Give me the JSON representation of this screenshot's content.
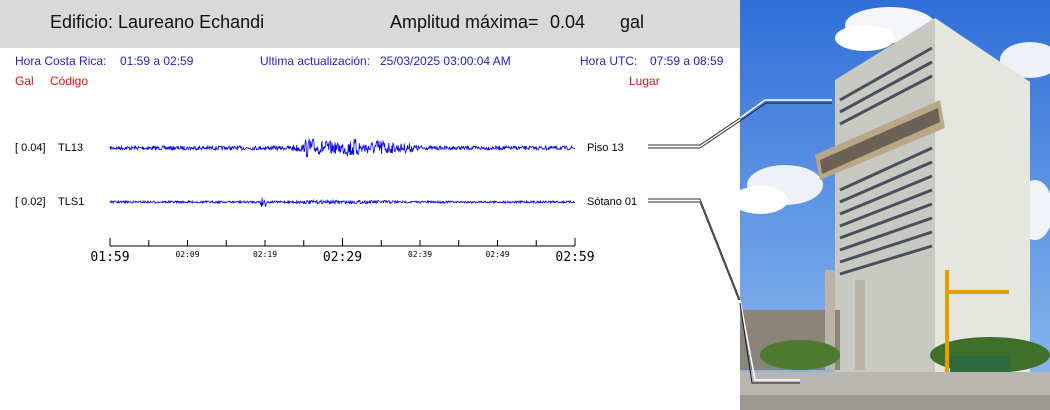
{
  "header": {
    "building_title": "Edificio: Laureano Echandi",
    "amp_label": "Amplitud máxima=",
    "amp_value": "0.04",
    "amp_unit": "gal"
  },
  "info": {
    "cr_label": "Hora Costa Rica:",
    "cr_range": "01:59 a 02:59",
    "update_label": "Ultima actualización:",
    "update_value": "25/03/2025 03:00:04 AM",
    "utc_label": "Hora UTC:",
    "utc_range": "07:59 a 08:59"
  },
  "columns": {
    "gal": "Gal",
    "codigo": "Código",
    "lugar": "Lugar"
  },
  "colors": {
    "trace": "#0000ee",
    "header_bg": "#d9d9d9",
    "info_text": "#2222cc",
    "column_text": "#e01010"
  },
  "chart_data": {
    "type": "line",
    "x_range": [
      "01:59",
      "02:59"
    ],
    "x_ticks": [
      {
        "label": "01:59",
        "major": true
      },
      {
        "label": "",
        "major": false
      },
      {
        "label": "02:09",
        "major": false
      },
      {
        "label": "",
        "major": false
      },
      {
        "label": "02:19",
        "major": false
      },
      {
        "label": "",
        "major": false
      },
      {
        "label": "02:29",
        "major": true
      },
      {
        "label": "",
        "major": false
      },
      {
        "label": "02:39",
        "major": false
      },
      {
        "label": "",
        "major": false
      },
      {
        "label": "02:49",
        "major": false
      },
      {
        "label": "",
        "major": false
      },
      {
        "label": "02:59",
        "major": true
      }
    ],
    "series": [
      {
        "gal_label": "[   0.04]",
        "code": "TL13",
        "place": "Piso 13",
        "max_gal": 0.04
      },
      {
        "gal_label": "[   0.02]",
        "code": "TLS1",
        "place": "Sótano 01",
        "max_gal": 0.02
      }
    ]
  },
  "photo": {
    "icon": "building-photo"
  }
}
